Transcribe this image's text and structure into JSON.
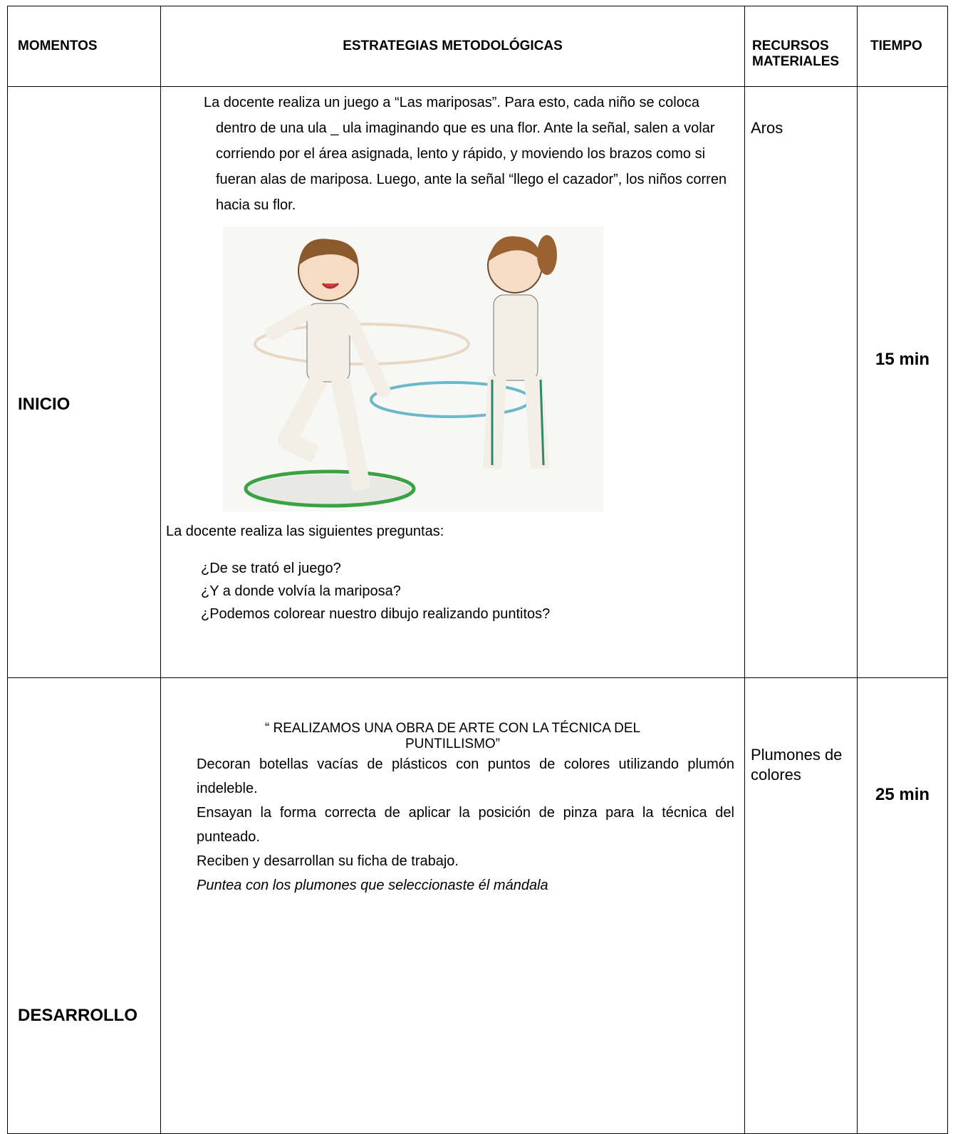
{
  "table": {
    "header": [
      "MOMENTOS",
      "ESTRATEGIAS METODOLÓGICAS",
      "RECURSOS MATERIALES",
      "TIEMPO"
    ],
    "rows": [
      {
        "momento": "INICIO",
        "intro": "La docente realiza un juego a “Las mariposas”. Para esto, cada niño se coloca dentro de una ula _ ula imaginando que es una flor. Ante la señal, salen a volar corriendo por el área asignada, lento y rápido, y moviendo los brazos como si fueran alas de mariposa. Luego, ante la señal “llego el cazador”, los niños corren hacia su flor.",
        "preguntas_intro": "La docente realiza las siguientes preguntas:",
        "preguntas": [
          "¿De se trató el juego?",
          "¿Y a donde volvía la mariposa?",
          "¿Podemos colorear nuestro dibujo realizando puntitos?"
        ],
        "recursos": "Aros",
        "tiempo": "15 min"
      },
      {
        "momento": "DESARROLLO",
        "titulo": "“ REALIZAMOS UNA OBRA DE ARTE CON LA TÉCNICA DEL PUNTILLISMO”",
        "pasos": [
          "Decoran botellas vacías de plásticos con puntos de colores utilizando plumón indeleble.",
          "Ensayan la forma correcta de aplicar la posición de pinza para la técnica del punteado.",
          "Reciben y desarrollan su ficha de trabajo."
        ],
        "consigna": "Puntea con los plumones que seleccionaste él mándala",
        "recursos": "Plumones de colores",
        "tiempo": "25 min"
      }
    ]
  }
}
